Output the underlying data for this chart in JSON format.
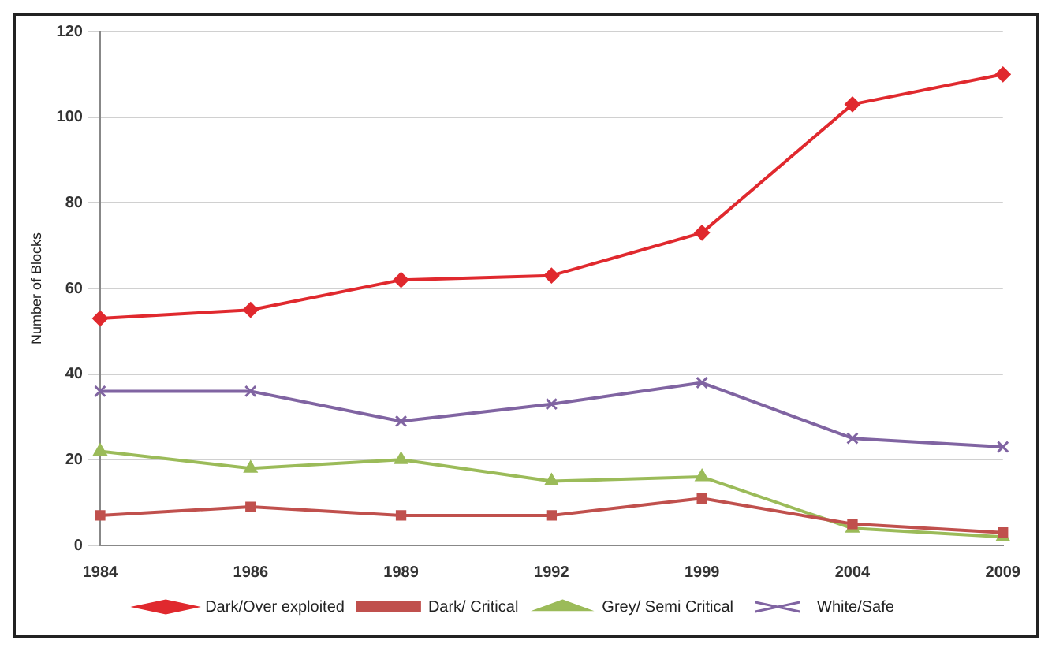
{
  "chart_data": {
    "type": "line",
    "ylabel": "Number of Blocks",
    "categories": [
      "1984",
      "1986",
      "1989",
      "1992",
      "1999",
      "2004",
      "2009"
    ],
    "series": [
      {
        "name": "Dark/Over exploited",
        "color": "#e0292e",
        "marker": "diamond",
        "values": [
          53,
          55,
          62,
          63,
          73,
          103,
          110
        ]
      },
      {
        "name": "Dark/ Critical",
        "color": "#c0504d",
        "marker": "square",
        "values": [
          7,
          9,
          7,
          7,
          11,
          5,
          3
        ]
      },
      {
        "name": "Grey/ Semi Critical",
        "color": "#9bbb59",
        "marker": "triangle",
        "values": [
          22,
          18,
          20,
          15,
          16,
          4,
          2
        ]
      },
      {
        "name": "White/Safe",
        "color": "#8064a2",
        "marker": "cross",
        "values": [
          36,
          36,
          29,
          33,
          38,
          25,
          23
        ]
      }
    ],
    "ylim": [
      0,
      120
    ],
    "yticks": [
      0,
      20,
      40,
      60,
      80,
      100,
      120
    ],
    "grid": "y",
    "legend": "bottom"
  }
}
